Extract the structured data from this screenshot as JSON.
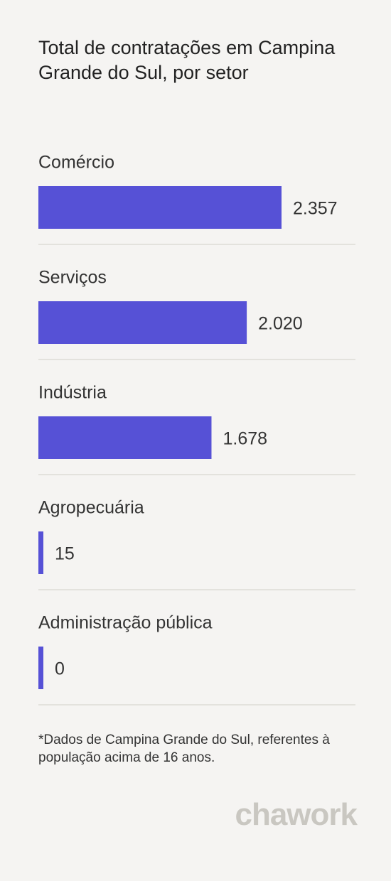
{
  "chart_data": {
    "type": "bar",
    "orientation": "horizontal",
    "title": "Total de contratações em Campina Grande do Sul, por setor",
    "categories": [
      "Comércio",
      "Serviços",
      "Indústria",
      "Agropecuária",
      "Administração pública"
    ],
    "values": [
      2357,
      2020,
      1678,
      15,
      0
    ],
    "value_labels": [
      "2.357",
      "2.020",
      "1.678",
      "15",
      "0"
    ],
    "color": "#5651d6",
    "note": "*Dados de Campina Grande do Sul, referentes à população acima de 16 anos.",
    "brand": "chawork"
  }
}
